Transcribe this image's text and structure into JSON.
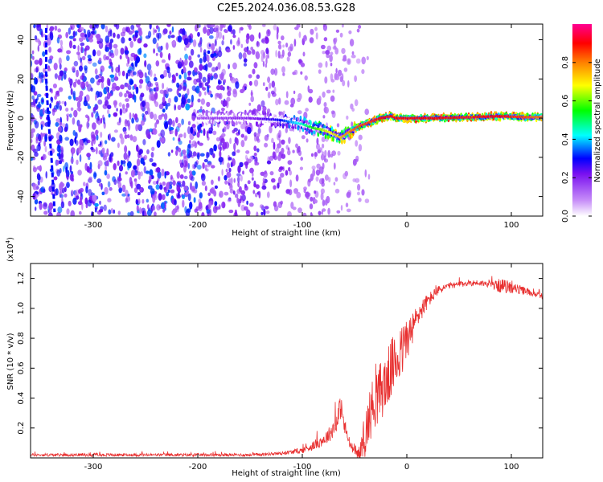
{
  "title": "C2E5.2024.036.08.53.G28",
  "chart_data": [
    {
      "type": "heatmap",
      "xlabel": "Height of straight line (km)",
      "ylabel": "Frequency (Hz)",
      "xlim": [
        -360,
        130
      ],
      "ylim": [
        -50,
        48
      ],
      "xticks": [
        -300,
        -200,
        -100,
        0,
        100
      ],
      "yticks": [
        -40,
        -20,
        0,
        20,
        40
      ],
      "colorbar": {
        "label": "Normalized spectral amplitude",
        "range": [
          0,
          1
        ],
        "ticks": [
          0.0,
          0.2,
          0.4,
          0.6,
          0.8
        ],
        "colors": [
          "#ffffff",
          "#a020f0",
          "#0000ff",
          "#00ffff",
          "#00ff00",
          "#ffff00",
          "#ff8000",
          "#ff0000",
          "#ff00a0"
        ]
      },
      "ridge": {
        "x": [
          -200,
          -150,
          -120,
          -100,
          -90,
          -80,
          -70,
          -63,
          -55,
          -45,
          -35,
          -25,
          -15,
          -10,
          0,
          30,
          60,
          90,
          110,
          130
        ],
        "y": [
          0,
          0,
          -1,
          -3,
          -5,
          -6,
          -8,
          -10,
          -7,
          -4,
          -2,
          0,
          1,
          0,
          0,
          0,
          0.5,
          1,
          0.5,
          0.5
        ],
        "amplitude": [
          0.15,
          0.2,
          0.3,
          0.45,
          0.55,
          0.65,
          0.7,
          0.75,
          0.8,
          0.85,
          0.85,
          0.9,
          0.9,
          0.9,
          0.9,
          0.9,
          0.88,
          0.9,
          0.85,
          0.8
        ]
      },
      "noise_region_x": [
        -360,
        -60
      ],
      "edge_feature": {
        "x": [
          -345,
          -345,
          -343,
          -340,
          -337
        ],
        "y": [
          46,
          20,
          0,
          -20,
          -48
        ]
      }
    },
    {
      "type": "line",
      "xlabel": "Height of straight line (km)",
      "ylabel": "SNR (10 * v/v)",
      "y_multiplier": "(x10",
      "y_multiplier_exp": "4",
      "y_multiplier_close": ")",
      "xlim": [
        -360,
        130
      ],
      "ylim": [
        0,
        1.3
      ],
      "xticks": [
        -300,
        -200,
        -100,
        0,
        100
      ],
      "yticks": [
        0.2,
        0.4,
        0.6,
        0.8,
        1.0,
        1.2
      ],
      "color": "#e83030",
      "envelope": {
        "x": [
          -360,
          -300,
          -200,
          -150,
          -120,
          -100,
          -90,
          -80,
          -75,
          -70,
          -66,
          -63,
          -60,
          -55,
          -50,
          -45,
          -40,
          -35,
          -30,
          -25,
          -20,
          -15,
          -10,
          -5,
          0,
          5,
          10,
          20,
          30,
          40,
          50,
          60,
          70,
          80,
          90,
          100,
          110,
          120,
          130
        ],
        "mean": [
          0.02,
          0.02,
          0.02,
          0.02,
          0.03,
          0.05,
          0.08,
          0.12,
          0.15,
          0.2,
          0.27,
          0.35,
          0.22,
          0.1,
          0.04,
          0.03,
          0.15,
          0.3,
          0.4,
          0.45,
          0.5,
          0.6,
          0.65,
          0.7,
          0.8,
          0.85,
          0.95,
          1.05,
          1.12,
          1.15,
          1.16,
          1.17,
          1.17,
          1.16,
          1.15,
          1.14,
          1.12,
          1.1,
          1.08
        ],
        "spread": [
          0.01,
          0.01,
          0.01,
          0.01,
          0.01,
          0.02,
          0.03,
          0.04,
          0.05,
          0.06,
          0.08,
          0.08,
          0.06,
          0.04,
          0.02,
          0.05,
          0.15,
          0.18,
          0.2,
          0.2,
          0.2,
          0.2,
          0.18,
          0.18,
          0.15,
          0.12,
          0.08,
          0.05,
          0.03,
          0.02,
          0.02,
          0.02,
          0.02,
          0.02,
          0.05,
          0.04,
          0.03,
          0.02,
          0.02
        ]
      }
    }
  ]
}
